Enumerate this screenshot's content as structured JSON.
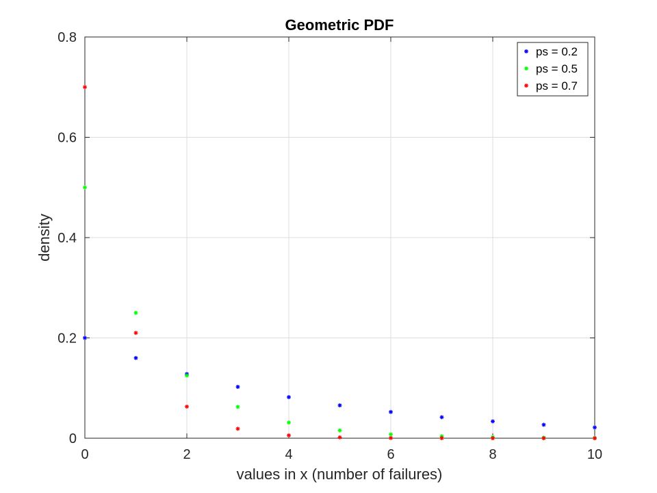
{
  "chart_data": {
    "type": "scatter",
    "title": "Geometric PDF",
    "xlabel": "values in x (number of failures)",
    "ylabel": "density",
    "xlim": [
      0,
      10
    ],
    "ylim": [
      0,
      0.8
    ],
    "xticks": [
      0,
      2,
      4,
      6,
      8,
      10
    ],
    "yticks": [
      0,
      0.2,
      0.4,
      0.6,
      0.8
    ],
    "xtick_labels": [
      "0",
      "2",
      "4",
      "6",
      "8",
      "10"
    ],
    "ytick_labels": [
      "0",
      "0.2",
      "0.4",
      "0.6",
      "0.8"
    ],
    "grid": true,
    "legend_position": "top-right",
    "marker": "asterisk",
    "x": [
      0,
      1,
      2,
      3,
      4,
      5,
      6,
      7,
      8,
      9,
      10
    ],
    "series": [
      {
        "name": "ps = 0.2",
        "color": "#0000ff",
        "values": [
          0.2,
          0.16,
          0.128,
          0.1024,
          0.0819,
          0.0655,
          0.0524,
          0.0419,
          0.0336,
          0.0268,
          0.0215
        ]
      },
      {
        "name": "ps = 0.5",
        "color": "#00ff00",
        "values": [
          0.5,
          0.25,
          0.125,
          0.0625,
          0.0313,
          0.0156,
          0.0078,
          0.0039,
          0.002,
          0.001,
          0.0005
        ]
      },
      {
        "name": "ps = 0.7",
        "color": "#ff0000",
        "values": [
          0.7,
          0.21,
          0.063,
          0.0189,
          0.0057,
          0.0017,
          0.0005,
          0.0002,
          0.0,
          0.0,
          0.0
        ]
      }
    ]
  }
}
